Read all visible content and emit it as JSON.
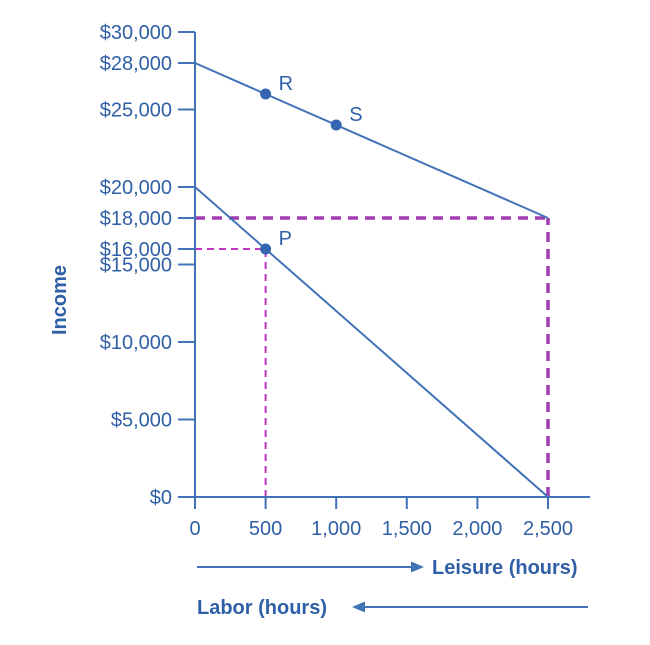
{
  "figure": {
    "ylabel": "Income",
    "xlabel_leisure": "Leisure (hours)",
    "xlabel_labor": "Labor (hours)"
  },
  "chart_data": {
    "type": "line",
    "title": "",
    "xlabel": "Leisure (hours)",
    "xlabel_secondary": "Labor (hours)",
    "ylabel": "Income",
    "xlim": [
      0,
      2500
    ],
    "ylim": [
      0,
      30000
    ],
    "grid": false,
    "legend": "none",
    "x_ticks": [
      {
        "value": 0,
        "label": "0"
      },
      {
        "value": 500,
        "label": "500"
      },
      {
        "value": 1000,
        "label": "1,000"
      },
      {
        "value": 1500,
        "label": "1,500"
      },
      {
        "value": 2000,
        "label": "2,000"
      },
      {
        "value": 2500,
        "label": "2,500"
      }
    ],
    "y_ticks": [
      {
        "value": 0,
        "label": "$0"
      },
      {
        "value": 5000,
        "label": "$5,000"
      },
      {
        "value": 10000,
        "label": "$10,000"
      },
      {
        "value": 15000,
        "label": "$15,000"
      },
      {
        "value": 16000,
        "label": "$16,000"
      },
      {
        "value": 18000,
        "label": "$18,000"
      },
      {
        "value": 20000,
        "label": "$20,000"
      },
      {
        "value": 25000,
        "label": "$25,000"
      },
      {
        "value": 28000,
        "label": "$28,000"
      },
      {
        "value": 30000,
        "label": "$30,000"
      }
    ],
    "series": [
      {
        "name": "upper_budget_line",
        "points": [
          [
            0,
            28000
          ],
          [
            2500,
            18000
          ]
        ]
      },
      {
        "name": "lower_budget_line",
        "points": [
          [
            0,
            20000
          ],
          [
            2500,
            0
          ]
        ]
      }
    ],
    "labeled_points": [
      {
        "label": "R",
        "x": 500,
        "y": 26000
      },
      {
        "label": "S",
        "x": 1000,
        "y": 24000
      },
      {
        "label": "P",
        "x": 500,
        "y": 16000
      }
    ],
    "guides": [
      {
        "style": "thick",
        "orientation": "horizontal",
        "y": 18000,
        "from_x": 0,
        "to_x": 2500
      },
      {
        "style": "thick",
        "orientation": "vertical",
        "x": 2500,
        "from_y": 0,
        "to_y": 18000
      },
      {
        "style": "thin",
        "orientation": "horizontal",
        "y": 16000,
        "from_x": 0,
        "to_x": 500
      },
      {
        "style": "thin",
        "orientation": "vertical",
        "x": 500,
        "from_y": 0,
        "to_y": 16000
      }
    ],
    "colors": {
      "line_blue": "#4273B8",
      "text_blue": "#2F5FA6",
      "point_blue": "#3565B0",
      "dash_thick_purple": "#A23AB3",
      "dash_thin_magenta": "#C137C1"
    }
  }
}
